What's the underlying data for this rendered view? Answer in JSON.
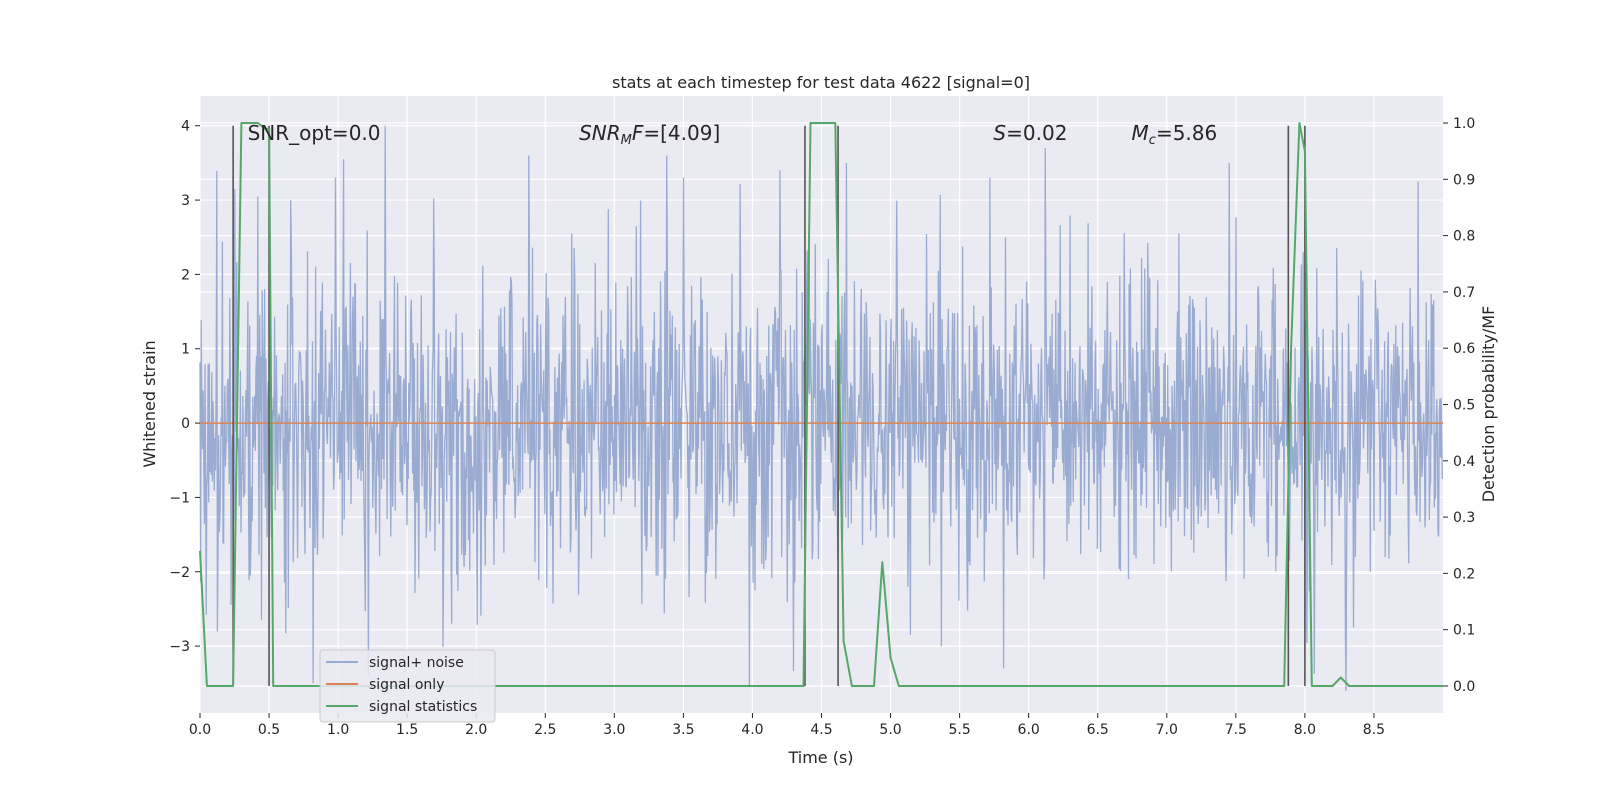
{
  "chart_data": {
    "type": "line",
    "title": "stats at each timestep for test data 4622 [signal=0]",
    "xlabel": "Time (s)",
    "ylabel": "Whitened strain",
    "ylabel_right": "Detection probability/MF",
    "xlim": [
      0.0,
      9.0
    ],
    "ylim": [
      -3.9,
      4.4
    ],
    "ylim_right": [
      -0.048,
      1.048
    ],
    "x_ticks": [
      "0.0",
      "0.5",
      "1.0",
      "1.5",
      "2.0",
      "2.5",
      "3.0",
      "3.5",
      "4.0",
      "4.5",
      "5.0",
      "5.5",
      "6.0",
      "6.5",
      "7.0",
      "7.5",
      "8.0",
      "8.5"
    ],
    "x_tick_values": [
      0.0,
      0.5,
      1.0,
      1.5,
      2.0,
      2.5,
      3.0,
      3.5,
      4.0,
      4.5,
      5.0,
      5.5,
      6.0,
      6.5,
      7.0,
      7.5,
      8.0,
      8.5
    ],
    "y_ticks": [
      "−3",
      "−2",
      "−1",
      "0",
      "1",
      "2",
      "3",
      "4"
    ],
    "y_tick_values": [
      -3,
      -2,
      -1,
      0,
      1,
      2,
      3,
      4
    ],
    "y_ticks_right": [
      "0.0",
      "0.1",
      "0.2",
      "0.3",
      "0.4",
      "0.5",
      "0.6",
      "0.7",
      "0.8",
      "0.9",
      "1.0"
    ],
    "y_tick_values_right": [
      0.0,
      0.1,
      0.2,
      0.3,
      0.4,
      0.5,
      0.6,
      0.7,
      0.8,
      0.9,
      1.0
    ],
    "annotations": [
      {
        "text": "SNR_opt=0.0",
        "x": 0.2,
        "y": 4.05
      },
      {
        "text": "SNR_MF=[4.09]",
        "x": 2.6,
        "y": 4.05
      },
      {
        "text": "S=0.02",
        "x": 5.6,
        "y": 4.05
      },
      {
        "text": "M_c=5.86",
        "x": 6.6,
        "y": 4.05
      }
    ],
    "series": [
      {
        "name": "signal+ noise",
        "color": "#99abd0",
        "axis": "left",
        "description": "whitened noise, roughly Gaussian, range about -3.6 to 4.0",
        "sample_dt": 0.0045,
        "amplitude_std": 1.0,
        "peaks": [
          [
            0.25,
            3.15
          ],
          [
            0.42,
            3.05
          ],
          [
            0.98,
            3.3
          ],
          [
            1.04,
            3.55
          ],
          [
            1.34,
            4.0
          ],
          [
            2.38,
            3.6
          ],
          [
            3.5,
            3.3
          ],
          [
            4.2,
            3.4
          ],
          [
            4.68,
            3.5
          ],
          [
            5.72,
            3.3
          ],
          [
            6.12,
            3.7
          ],
          [
            7.45,
            3.5
          ],
          [
            8.82,
            3.25
          ],
          [
            0.82,
            -3.5
          ],
          [
            1.22,
            -3.4
          ],
          [
            3.98,
            -3.55
          ],
          [
            5.82,
            -3.3
          ],
          [
            8.3,
            -3.6
          ]
        ]
      },
      {
        "name": "signal only",
        "color": "#dd8452",
        "axis": "left",
        "x": [
          0.0,
          9.0
        ],
        "y": [
          0.0,
          0.0
        ]
      },
      {
        "name": "signal statistics",
        "color": "#55a868",
        "axis": "right",
        "x": [
          0.0,
          0.05,
          0.1,
          0.15,
          0.2,
          0.24,
          0.3,
          0.35,
          0.42,
          0.47,
          0.5,
          0.53,
          0.58,
          0.7,
          1.0,
          2.0,
          3.0,
          3.5,
          3.6,
          3.7,
          4.0,
          4.3,
          4.37,
          4.42,
          4.5,
          4.6,
          4.66,
          4.72,
          4.8,
          4.88,
          4.94,
          5.0,
          5.06,
          5.2,
          5.5,
          5.8,
          6.0,
          6.5,
          7.0,
          7.5,
          7.8,
          7.85,
          7.9,
          7.96,
          8.0,
          8.05,
          8.1,
          8.2,
          8.26,
          8.32,
          8.4,
          9.0
        ],
        "y": [
          0.24,
          0.0,
          0.0,
          0.0,
          0.0,
          0.0,
          1.0,
          1.0,
          1.0,
          0.99,
          0.99,
          0.0,
          0.0,
          0.0,
          0.0,
          0.0,
          0.0,
          0.0,
          0.0,
          0.0,
          0.0,
          0.0,
          0.0,
          1.0,
          1.0,
          1.0,
          0.08,
          0.0,
          0.0,
          0.0,
          0.22,
          0.05,
          0.0,
          0.0,
          0.0,
          0.0,
          0.0,
          0.0,
          0.0,
          0.0,
          0.0,
          0.0,
          0.6,
          1.0,
          0.95,
          0.0,
          0.0,
          0.0,
          0.015,
          0.0,
          0.0,
          0.0
        ]
      }
    ],
    "vertical_lines": [
      0.24,
      0.5,
      4.38,
      4.62,
      7.88,
      8.0
    ],
    "vertical_line_color": "#555555",
    "legend": {
      "placement": "lower-left",
      "entries": [
        {
          "label": "signal+ noise",
          "color": "#99abd0"
        },
        {
          "label": "signal only",
          "color": "#dd8452"
        },
        {
          "label": "signal statistics",
          "color": "#55a868"
        }
      ]
    },
    "background_color": "#eaeaf2",
    "grid": true,
    "grid_color": "#ffffff"
  }
}
